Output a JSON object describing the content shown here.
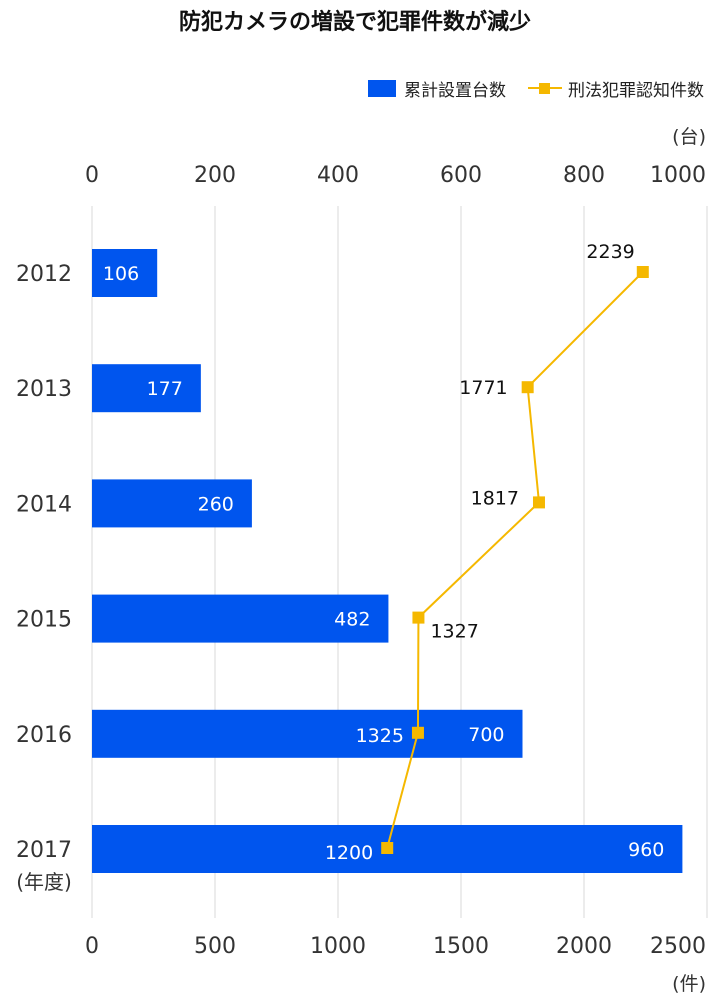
{
  "chart_data": {
    "type": "bar+line",
    "title": "防犯カメラの増設で犯罪件数が減少",
    "categories": [
      "2012",
      "2013",
      "2014",
      "2015",
      "2016",
      "2017"
    ],
    "category_unit": "(年度)",
    "series": [
      {
        "name": "累計設置台数",
        "type": "bar",
        "orientation": "horizontal",
        "axis": "top",
        "color": "#0055ee",
        "values": [
          106,
          177,
          260,
          482,
          700,
          960
        ]
      },
      {
        "name": "刑法犯罪認知件数",
        "type": "line",
        "axis": "bottom",
        "color": "#f5b800",
        "marker": "square",
        "values": [
          2239,
          1771,
          1817,
          1327,
          1325,
          1200
        ]
      }
    ],
    "top_axis": {
      "unit": "(台)",
      "range": [
        0,
        1000
      ],
      "ticks": [
        "0",
        "200",
        "400",
        "600",
        "800",
        "1000"
      ]
    },
    "bottom_axis": {
      "unit": "(件)",
      "range": [
        0,
        2500
      ],
      "ticks": [
        "0",
        "500",
        "1000",
        "1500",
        "2000",
        "2500"
      ]
    },
    "grid": "vertical",
    "legend_position": "top-right"
  }
}
